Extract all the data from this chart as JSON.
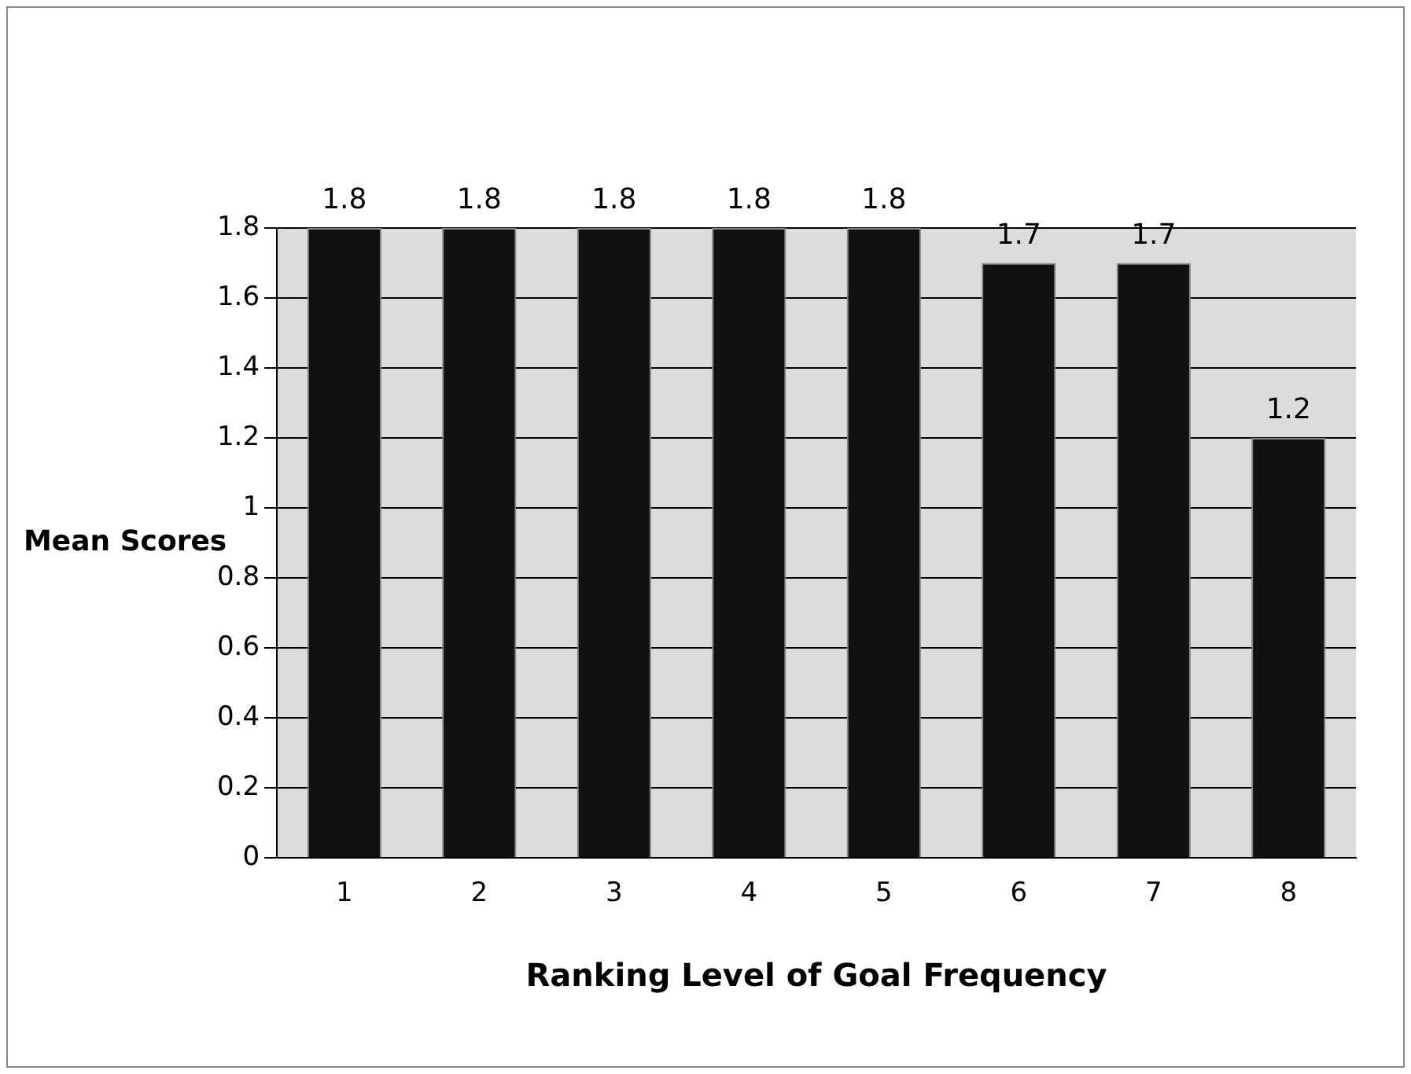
{
  "chart_data": {
    "type": "bar",
    "categories": [
      "1",
      "2",
      "3",
      "4",
      "5",
      "6",
      "7",
      "8"
    ],
    "values": [
      1.8,
      1.8,
      1.8,
      1.8,
      1.8,
      1.7,
      1.7,
      1.2
    ],
    "color": "#111111",
    "ylim": [
      0,
      1.8
    ],
    "yticks": [
      0,
      0.2,
      0.4,
      0.6,
      0.8,
      1,
      1.2,
      1.4,
      1.6,
      1.8
    ],
    "grid": "y",
    "data_labels": true,
    "legend": false,
    "xlabel": "Ranking Level of Goal Frequency",
    "ylabel": "Mean Scores"
  }
}
